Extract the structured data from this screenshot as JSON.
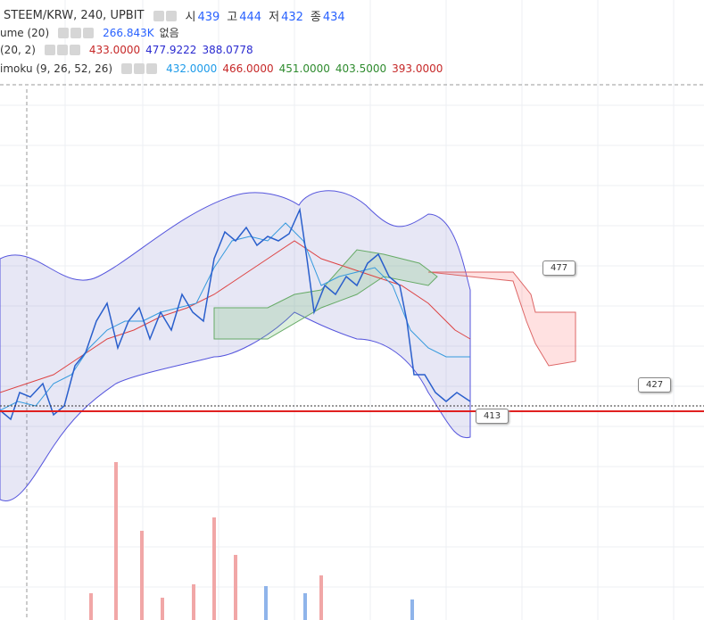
{
  "header": {
    "symbol": "STEEM/KRW, 240, UPBIT",
    "ohlc": [
      {
        "label": "시",
        "value": "439"
      },
      {
        "label": "고",
        "value": "444"
      },
      {
        "label": "저",
        "value": "432"
      },
      {
        "label": "종",
        "value": "434"
      }
    ]
  },
  "indicators": [
    {
      "name": "ume (20)",
      "values": [
        {
          "text": "266.843K",
          "color": "#2962ff"
        },
        {
          "text": "없음",
          "color": "#333333"
        }
      ]
    },
    {
      "name": "(20, 2)",
      "values": [
        {
          "text": "433.0000",
          "color": "#c62828"
        },
        {
          "text": "477.9222",
          "color": "#2a2ad0"
        },
        {
          "text": "388.0778",
          "color": "#2a2ad0"
        }
      ]
    },
    {
      "name": "imoku (9, 26, 52, 26)",
      "values": [
        {
          "text": "432.0000",
          "color": "#1e9be9"
        },
        {
          "text": "466.0000",
          "color": "#c62828"
        },
        {
          "text": "451.0000",
          "color": "#2e8b2e"
        },
        {
          "text": "403.5000",
          "color": "#2e8b2e"
        },
        {
          "text": "393.0000",
          "color": "#c62828"
        }
      ]
    }
  ],
  "callouts": [
    "477",
    "427",
    "413"
  ]
}
